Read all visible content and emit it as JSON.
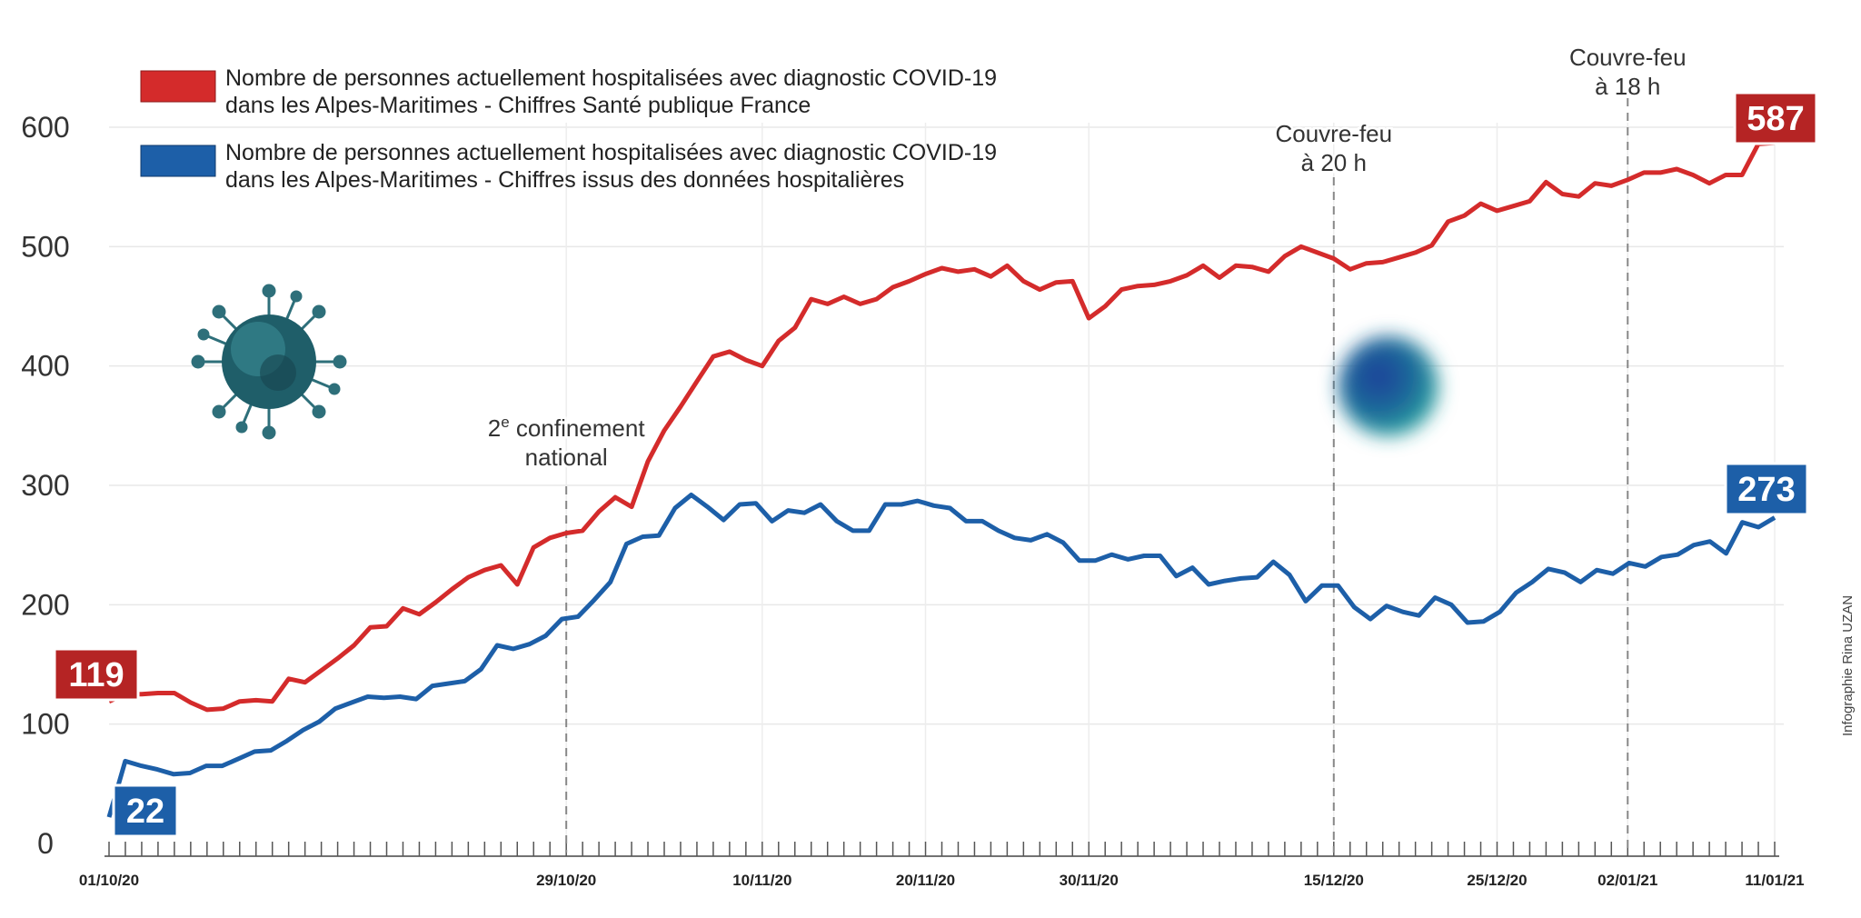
{
  "chart_data": {
    "type": "line",
    "ylim": [
      0,
      600
    ],
    "yticks": [
      0,
      100,
      200,
      300,
      400,
      500,
      600
    ],
    "x_start": "01/10/20",
    "x_tick_labels": [
      {
        "label": "01/10/20",
        "day": 0
      },
      {
        "label": "29/10/20",
        "day": 28
      },
      {
        "label": "10/11/20",
        "day": 40
      },
      {
        "label": "20/11/20",
        "day": 50
      },
      {
        "label": "30/11/20",
        "day": 60
      },
      {
        "label": "15/12/20",
        "day": 75
      },
      {
        "label": "25/12/20",
        "day": 85
      },
      {
        "label": "02/01/21",
        "day": 93
      },
      {
        "label": "11/01/21",
        "day": 102
      }
    ],
    "series": [
      {
        "name": "Nombre de personnes actuellement hospitalisées avec diagnostic COVID-19 dans les Alpes-Maritimes - Chiffres Santé publique France",
        "color": "#d42b2b",
        "values": [
          119,
          125,
          125,
          126,
          126,
          118,
          112,
          113,
          119,
          120,
          119,
          138,
          135,
          145,
          155,
          166,
          181,
          182,
          197,
          192,
          202,
          213,
          223,
          229,
          233,
          217,
          248,
          256,
          260,
          262,
          278,
          290,
          282,
          320,
          346,
          366,
          387,
          408,
          412,
          405,
          400,
          421,
          432,
          456,
          452,
          458,
          452,
          456,
          466,
          471,
          477,
          482,
          479,
          481,
          475,
          484,
          471,
          464,
          470,
          471,
          440,
          450,
          464,
          467,
          468,
          471,
          476,
          484,
          474,
          484,
          483,
          479,
          492,
          500,
          495,
          490,
          481,
          486,
          487,
          491,
          495,
          501,
          521,
          526,
          536,
          530,
          534,
          538,
          554,
          544,
          542,
          553,
          551,
          556,
          562,
          562,
          565,
          560,
          553,
          560,
          560,
          586,
          587
        ],
        "end_label": "587",
        "start_label": "119"
      },
      {
        "name": "Nombre de personnes actuellement hospitalisées avec diagnostic COVID-19 dans les Alpes-Maritimes - Chiffres issus des données hospitalières",
        "color": "#1d5fa8",
        "values": [
          22,
          69,
          65,
          62,
          58,
          59,
          65,
          65,
          71,
          77,
          78,
          86,
          95,
          102,
          113,
          118,
          123,
          122,
          123,
          121,
          132,
          134,
          136,
          146,
          166,
          163,
          167,
          174,
          188,
          190,
          204,
          219,
          251,
          257,
          258,
          281,
          292,
          282,
          271,
          284,
          285,
          270,
          279,
          277,
          284,
          270,
          262,
          262,
          284,
          284,
          287,
          283,
          281,
          270,
          270,
          262,
          256,
          254,
          259,
          252,
          237,
          237,
          242,
          238,
          241,
          241,
          224,
          231,
          217,
          220,
          222,
          223,
          236,
          225,
          203,
          216,
          216,
          198,
          188,
          199,
          194,
          191,
          206,
          200,
          185,
          186,
          194,
          210,
          219,
          230,
          227,
          219,
          229,
          226,
          235,
          232,
          240,
          242,
          250,
          253,
          243,
          269,
          265,
          273
        ],
        "end_label": "273",
        "start_label": "22"
      }
    ],
    "annotations": [
      {
        "line1": "2e confinement",
        "line2": "national",
        "sup": "e",
        "day": 28
      },
      {
        "line1": "Couvre-feu",
        "line2": "à 20 h",
        "day": 75
      },
      {
        "line1": "Couvre-feu",
        "line2": "à 18 h",
        "day": 93
      }
    ],
    "credit": "Infographie Rina UZAN",
    "grid": true,
    "legend_position": "top-left"
  }
}
